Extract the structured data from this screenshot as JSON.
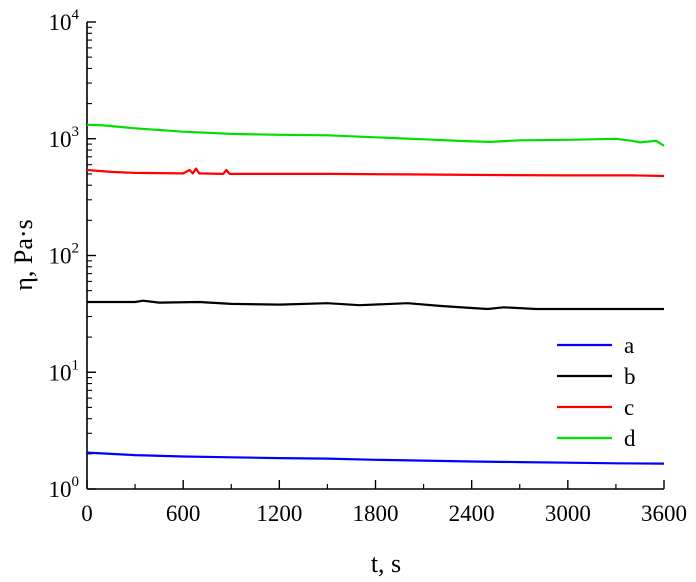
{
  "chart_data": {
    "type": "line",
    "title": "",
    "xlabel": "t, s",
    "ylabel": "η, Pa·s",
    "xlim": [
      0,
      3600
    ],
    "ylim": [
      1,
      10000
    ],
    "yscale": "log",
    "grid": false,
    "legend_position": "right",
    "x_ticks": [
      0,
      600,
      1200,
      1800,
      2400,
      3000,
      3600
    ],
    "x_tick_labels": [
      "0",
      "600",
      "1200",
      "1800",
      "2400",
      "3000",
      "3600"
    ],
    "y_ticks": [
      1,
      10,
      100,
      1000,
      10000
    ],
    "y_tick_labels": [
      {
        "base": "10",
        "exp": "0"
      },
      {
        "base": "10",
        "exp": "1"
      },
      {
        "base": "10",
        "exp": "2"
      },
      {
        "base": "10",
        "exp": "3"
      },
      {
        "base": "10",
        "exp": "4"
      }
    ],
    "series": [
      {
        "name": "a",
        "color": "#0000ff",
        "points": [
          [
            0,
            2.05
          ],
          [
            300,
            1.95
          ],
          [
            600,
            1.9
          ],
          [
            900,
            1.87
          ],
          [
            1200,
            1.84
          ],
          [
            1500,
            1.82
          ],
          [
            1800,
            1.78
          ],
          [
            2100,
            1.75
          ],
          [
            2400,
            1.72
          ],
          [
            2700,
            1.7
          ],
          [
            3000,
            1.68
          ],
          [
            3300,
            1.66
          ],
          [
            3600,
            1.65
          ]
        ]
      },
      {
        "name": "b",
        "color": "#000000",
        "points": [
          [
            0,
            40
          ],
          [
            300,
            40
          ],
          [
            350,
            41
          ],
          [
            450,
            39.5
          ],
          [
            700,
            40
          ],
          [
            900,
            38.5
          ],
          [
            1200,
            38
          ],
          [
            1500,
            39
          ],
          [
            1700,
            37.5
          ],
          [
            2000,
            39
          ],
          [
            2200,
            37
          ],
          [
            2400,
            35.5
          ],
          [
            2500,
            34.8
          ],
          [
            2600,
            36
          ],
          [
            2800,
            34.8
          ],
          [
            3000,
            34.8
          ],
          [
            3300,
            34.8
          ],
          [
            3600,
            34.8
          ]
        ]
      },
      {
        "name": "c",
        "color": "#ff0000",
        "points": [
          [
            0,
            540
          ],
          [
            150,
            520
          ],
          [
            300,
            510
          ],
          [
            600,
            505
          ],
          [
            640,
            540
          ],
          [
            660,
            505
          ],
          [
            680,
            555
          ],
          [
            700,
            505
          ],
          [
            850,
            500
          ],
          [
            870,
            540
          ],
          [
            890,
            500
          ],
          [
            1000,
            500
          ],
          [
            1500,
            500
          ],
          [
            2000,
            495
          ],
          [
            2400,
            490
          ],
          [
            3000,
            485
          ],
          [
            3400,
            485
          ],
          [
            3600,
            480
          ]
        ]
      },
      {
        "name": "d",
        "color": "#00e000",
        "points": [
          [
            0,
            1320
          ],
          [
            100,
            1300
          ],
          [
            300,
            1230
          ],
          [
            600,
            1150
          ],
          [
            900,
            1100
          ],
          [
            1200,
            1080
          ],
          [
            1500,
            1070
          ],
          [
            1800,
            1030
          ],
          [
            2100,
            990
          ],
          [
            2400,
            950
          ],
          [
            2520,
            940
          ],
          [
            2700,
            970
          ],
          [
            3000,
            980
          ],
          [
            3300,
            1000
          ],
          [
            3400,
            960
          ],
          [
            3450,
            930
          ],
          [
            3550,
            960
          ],
          [
            3600,
            870
          ]
        ]
      }
    ]
  }
}
